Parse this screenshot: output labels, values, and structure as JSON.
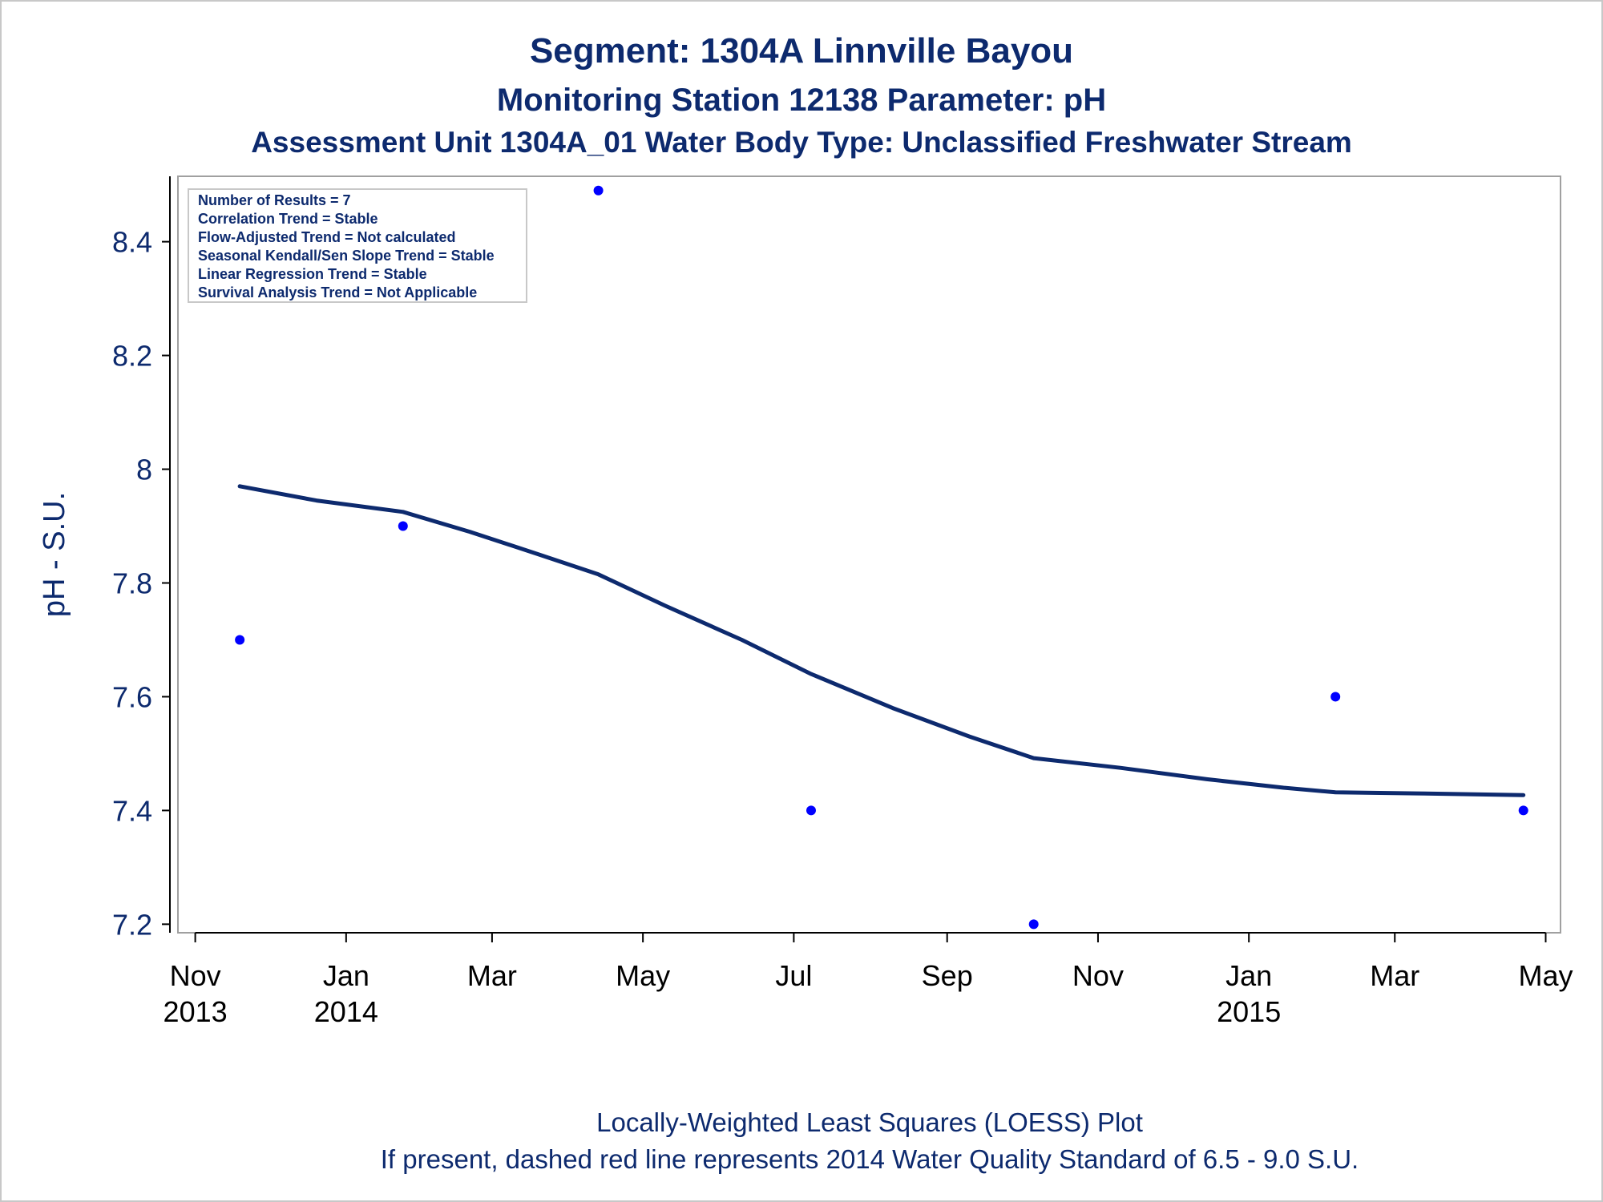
{
  "titles": {
    "line1": "Segment: 1304A  Linnville Bayou",
    "line2": "Monitoring Station 12138 Parameter: pH",
    "line3": "Assessment Unit 1304A_01   Water Body Type: Unclassified Freshwater Stream"
  },
  "footnotes": {
    "line1": "Locally-Weighted Least Squares (LOESS) Plot",
    "line2": "If present, dashed red line represents 2014 Water Quality Standard of 6.5 - 9.0 S.U."
  },
  "stats_box": [
    "Number of Results = 7",
    "Correlation Trend = Stable",
    "Flow-Adjusted Trend = Not calculated",
    "Seasonal Kendall/Sen Slope Trend = Stable",
    "Linear Regression Trend = Stable",
    "Survival Analysis Trend = Not Applicable"
  ],
  "colors": {
    "title": "#0d2a6e",
    "points": "#0000ff",
    "loess_line": "#0d2a6e",
    "frame": "#a0a0a0"
  },
  "chart_data": {
    "type": "scatter",
    "title": "Segment: 1304A  Linnville Bayou",
    "xlabel": "",
    "ylabel": "pH - S.U.",
    "xlim": [
      "2013-10-25",
      "2015-05-07"
    ],
    "ylim": [
      7.185,
      8.515
    ],
    "grid": false,
    "legend": "none",
    "x_ticks": [
      {
        "date": "2013-11-01",
        "month": "Nov",
        "year": "2013"
      },
      {
        "date": "2014-01-01",
        "month": "Jan",
        "year": "2014"
      },
      {
        "date": "2014-03-01",
        "month": "Mar",
        "year": ""
      },
      {
        "date": "2014-05-01",
        "month": "May",
        "year": ""
      },
      {
        "date": "2014-07-01",
        "month": "Jul",
        "year": ""
      },
      {
        "date": "2014-09-01",
        "month": "Sep",
        "year": ""
      },
      {
        "date": "2014-11-01",
        "month": "Nov",
        "year": ""
      },
      {
        "date": "2015-01-01",
        "month": "Jan",
        "year": "2015"
      },
      {
        "date": "2015-03-01",
        "month": "Mar",
        "year": ""
      },
      {
        "date": "2015-05-01",
        "month": "May",
        "year": ""
      }
    ],
    "y_ticks": [
      {
        "value": 7.2,
        "label": "7.2"
      },
      {
        "value": 7.4,
        "label": "7.4"
      },
      {
        "value": 7.6,
        "label": "7.6"
      },
      {
        "value": 7.8,
        "label": "7.8"
      },
      {
        "value": 8.0,
        "label": "8"
      },
      {
        "value": 8.2,
        "label": "8.2"
      },
      {
        "value": 8.4,
        "label": "8.4"
      }
    ],
    "series": [
      {
        "type": "scatter",
        "points": [
          {
            "x": "2013-11-19",
            "y": 7.7
          },
          {
            "x": "2014-01-24",
            "y": 7.9
          },
          {
            "x": "2014-04-13",
            "y": 8.49
          },
          {
            "x": "2014-07-08",
            "y": 7.4
          },
          {
            "x": "2014-10-06",
            "y": 7.2
          },
          {
            "x": "2015-02-05",
            "y": 7.6
          },
          {
            "x": "2015-04-22",
            "y": 7.4
          }
        ]
      },
      {
        "type": "line",
        "points": [
          {
            "x": "2013-11-19",
            "y": 7.97
          },
          {
            "x": "2013-12-20",
            "y": 7.945
          },
          {
            "x": "2014-01-24",
            "y": 7.925
          },
          {
            "x": "2014-02-20",
            "y": 7.89
          },
          {
            "x": "2014-03-20",
            "y": 7.85
          },
          {
            "x": "2014-04-13",
            "y": 7.815
          },
          {
            "x": "2014-05-10",
            "y": 7.76
          },
          {
            "x": "2014-06-10",
            "y": 7.7
          },
          {
            "x": "2014-07-08",
            "y": 7.64
          },
          {
            "x": "2014-08-10",
            "y": 7.58
          },
          {
            "x": "2014-09-10",
            "y": 7.53
          },
          {
            "x": "2014-10-06",
            "y": 7.492
          },
          {
            "x": "2014-11-10",
            "y": 7.475
          },
          {
            "x": "2014-12-15",
            "y": 7.455
          },
          {
            "x": "2015-01-15",
            "y": 7.44
          },
          {
            "x": "2015-02-05",
            "y": 7.432
          },
          {
            "x": "2015-03-10",
            "y": 7.43
          },
          {
            "x": "2015-04-22",
            "y": 7.427
          }
        ]
      }
    ]
  }
}
